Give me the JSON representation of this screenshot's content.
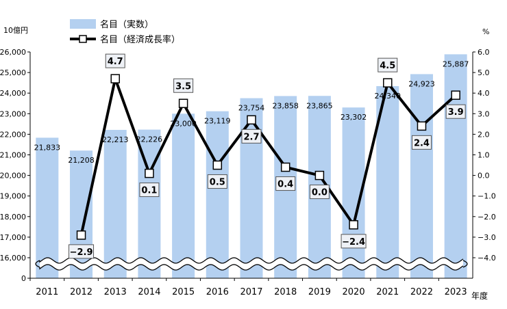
{
  "chart_data": {
    "type": "bar+line",
    "left_axis_unit": "10億円",
    "right_axis_unit": "%",
    "x_axis_unit": "年度",
    "categories": [
      "2011",
      "2012",
      "2013",
      "2014",
      "2015",
      "2016",
      "2017",
      "2018",
      "2019",
      "2020",
      "2021",
      "2022",
      "2023"
    ],
    "legend": [
      {
        "label": "名目（実数）",
        "type": "bar"
      },
      {
        "label": "名目（経済成長率）",
        "type": "line"
      }
    ],
    "series": [
      {
        "name": "名目（実数）",
        "type": "bar",
        "axis": "left",
        "values": [
          21833,
          21208,
          22213,
          22226,
          23000,
          23119,
          23754,
          23858,
          23865,
          23302,
          24340,
          24923,
          25887
        ],
        "labels": [
          "21,833",
          "21,208",
          "22,213",
          "22,226",
          "23,000",
          "23,119",
          "23,754",
          "23,858",
          "23,865",
          "23,302",
          "24,340",
          "24,923",
          "25,887"
        ]
      },
      {
        "name": "名目（経済成長率）",
        "type": "line",
        "axis": "right",
        "values": [
          null,
          -2.9,
          4.7,
          0.1,
          3.5,
          0.5,
          2.7,
          0.4,
          0.0,
          -2.4,
          4.5,
          2.4,
          3.9
        ],
        "labels": [
          "",
          "−2.9",
          "4.7",
          "0.1",
          "3.5",
          "0.5",
          "2.7",
          "0.4",
          "0.0",
          "−2.4",
          "4.5",
          "2.4",
          "3.9"
        ]
      }
    ],
    "left_axis": {
      "min": 16000,
      "max": 26000,
      "step": 1000,
      "broken_below": 16000,
      "zero_label": "0",
      "tick_labels": [
        "26,000",
        "25,000",
        "24,000",
        "23,000",
        "22,000",
        "21,000",
        "20,000",
        "19,000",
        "18,000",
        "17,000",
        "16,000"
      ]
    },
    "right_axis": {
      "min": -4.0,
      "max": 6.0,
      "step": 1.0,
      "tick_labels": [
        "6.0",
        "5.0",
        "4.0",
        "3.0",
        "2.0",
        "1.0",
        "0.0",
        "−1.0",
        "−2.0",
        "−3.0",
        "−4.0"
      ]
    },
    "colors": {
      "bar": "#b4d0f0",
      "line": "#000000",
      "marker_fill": "#ffffff",
      "label_box_fill": "#eef1f6"
    }
  }
}
